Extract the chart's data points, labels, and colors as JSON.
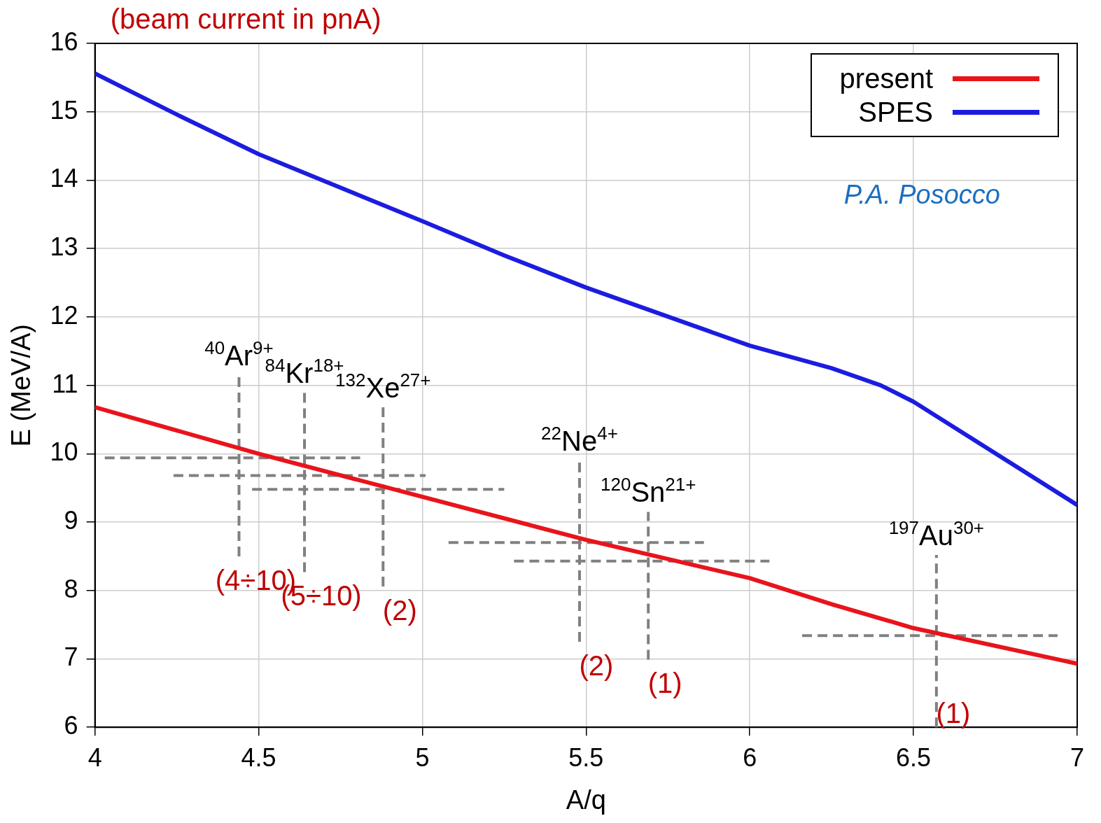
{
  "chart_data": {
    "type": "line",
    "title": "(beam current in pnA)",
    "xlabel": "A/q",
    "ylabel": "E (MeV/A)",
    "xlim": [
      4,
      7
    ],
    "ylim": [
      6,
      16
    ],
    "xticks": [
      4,
      4.5,
      5,
      5.5,
      6,
      6.5,
      7
    ],
    "yticks": [
      6,
      7,
      8,
      9,
      10,
      11,
      12,
      13,
      14,
      15,
      16
    ],
    "grid": true,
    "legend": "top right",
    "series": [
      {
        "name": "present",
        "color": "#e8141c",
        "x": [
          4,
          4.5,
          5,
          5.5,
          6,
          6.25,
          6.5,
          7
        ],
        "values": [
          10.68,
          10.0,
          9.37,
          8.74,
          8.18,
          7.8,
          7.45,
          6.93
        ]
      },
      {
        "name": "SPES",
        "color": "#1c1ce0",
        "x": [
          4,
          4.25,
          4.5,
          5,
          5.25,
          5.5,
          6,
          6.25,
          6.4,
          6.5,
          7
        ],
        "values": [
          15.56,
          14.96,
          14.38,
          13.4,
          12.9,
          12.43,
          11.58,
          11.25,
          11.0,
          10.76,
          9.25
        ]
      },
      {
        "color": "#808080",
        "line_style": "dashed",
        "x": [
          4.44,
          4.44
        ],
        "values": [
          8.5,
          11.15
        ]
      },
      {
        "color": "#808080",
        "line_style": "dashed",
        "x": [
          4.03,
          4.81
        ],
        "values": [
          9.94,
          9.94
        ]
      },
      {
        "color": "#808080",
        "line_style": "dashed",
        "x": [
          4.64,
          4.64
        ],
        "values": [
          8.27,
          10.89
        ]
      },
      {
        "color": "#808080",
        "line_style": "dashed",
        "x": [
          4.24,
          5.01
        ],
        "values": [
          9.68,
          9.68
        ]
      },
      {
        "color": "#808080",
        "line_style": "dashed",
        "x": [
          4.88,
          4.88
        ],
        "values": [
          8.06,
          10.68
        ]
      },
      {
        "color": "#808080",
        "line_style": "dashed",
        "x": [
          4.48,
          5.25
        ],
        "values": [
          9.48,
          9.48
        ]
      },
      {
        "color": "#808080",
        "line_style": "dashed",
        "x": [
          5.48,
          5.48
        ],
        "values": [
          7.25,
          9.9
        ]
      },
      {
        "color": "#808080",
        "line_style": "dashed",
        "x": [
          5.08,
          5.86
        ],
        "values": [
          8.7,
          8.7
        ]
      },
      {
        "color": "#808080",
        "line_style": "dashed",
        "x": [
          5.69,
          5.69
        ],
        "values": [
          6.99,
          9.15
        ]
      },
      {
        "color": "#808080",
        "line_style": "dashed",
        "x": [
          5.28,
          6.06
        ],
        "values": [
          8.43,
          8.43
        ]
      },
      {
        "color": "#808080",
        "line_style": "dashed",
        "x": [
          6.57,
          6.57
        ],
        "values": [
          6,
          8.52
        ]
      },
      {
        "color": "#808080",
        "line_style": "dashed",
        "x": [
          6.16,
          6.94
        ],
        "values": [
          7.34,
          7.34
        ]
      }
    ],
    "annotations": [
      {
        "text": "$^{40}$Ar$^{9+}$",
        "x": 4.44,
        "y": 11.15
      },
      {
        "text": "$^{84}$Kr$^{18+}$",
        "x": 4.64,
        "y": 10.89
      },
      {
        "text": "$^{132}$Xe$^{27+}$",
        "x": 4.88,
        "y": 10.68
      },
      {
        "text": "$^{22}$Ne$^{4+}$",
        "x": 5.48,
        "y": 9.9
      },
      {
        "text": "$^{120}$Sn$^{21+}$",
        "x": 5.69,
        "y": 9.15
      },
      {
        "text": "$^{197}$Au$^{30+}$",
        "x": 6.57,
        "y": 8.52
      },
      {
        "text": "(4÷10)",
        "x": 4.44,
        "y": 8.5
      },
      {
        "text": "(5÷10)",
        "x": 4.64,
        "y": 8.27
      },
      {
        "text": "(2)",
        "x": 4.88,
        "y": 8.06
      },
      {
        "text": "(2)",
        "x": 5.48,
        "y": 7.25
      },
      {
        "text": "(1)",
        "x": 5.69,
        "y": 6.99
      },
      {
        "text": "(1)",
        "x": 6.57,
        "y": 6
      },
      "P.A. Posocco"
    ]
  }
}
